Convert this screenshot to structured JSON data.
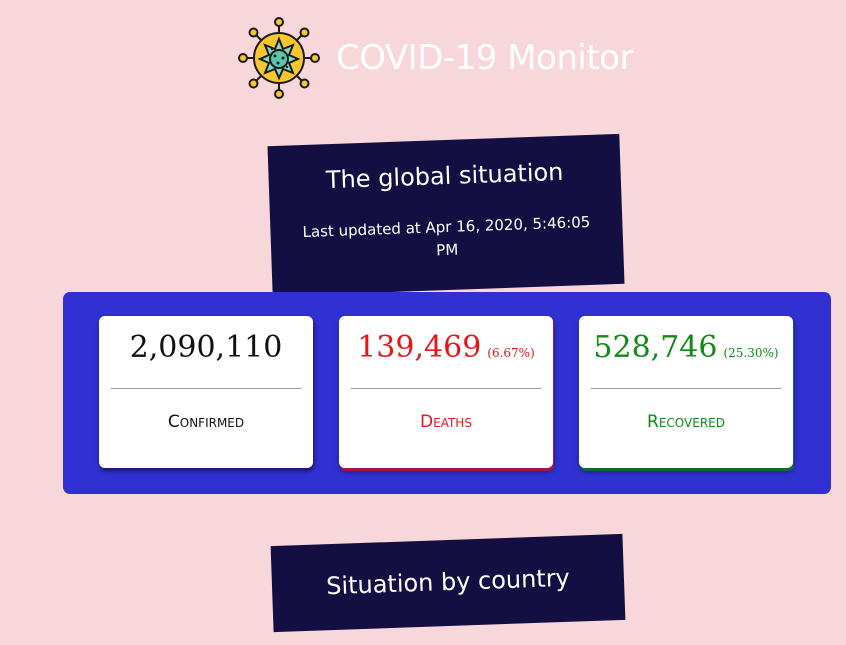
{
  "header": {
    "title": "COVID-19 Monitor",
    "logo_icon": "virus-icon"
  },
  "global": {
    "title": "The global situation",
    "last_updated": "Last updated at Apr 16, 2020, 5:46:05 PM"
  },
  "stats": {
    "confirmed": {
      "value": "2,090,110",
      "label": "Confirmed",
      "color": "#111111"
    },
    "deaths": {
      "value": "139,469",
      "percent": "(6.67%)",
      "label": "Deaths",
      "color": "#e8151b"
    },
    "recovered": {
      "value": "528,746",
      "percent": "(25.30%)",
      "label": "Recovered",
      "color": "#128a14"
    }
  },
  "country": {
    "title": "Situation by country"
  },
  "colors": {
    "background": "#f8d7da",
    "banner": "#140f42",
    "panel": "#3131d3"
  }
}
